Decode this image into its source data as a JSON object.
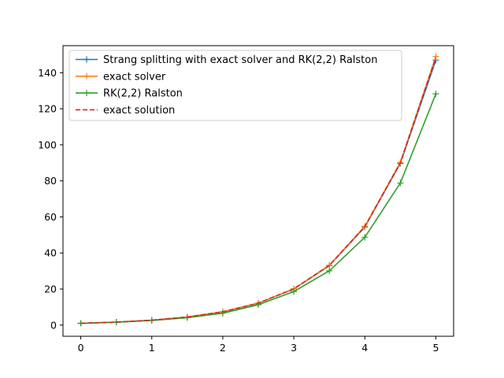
{
  "chart_data": {
    "type": "line",
    "title": "",
    "xlabel": "",
    "ylabel": "",
    "xlim": [
      -0.25,
      5.25
    ],
    "ylim": [
      -6.2,
      155.0
    ],
    "grid": false,
    "legend_position": "top-left",
    "x": [
      0,
      0.5,
      1,
      1.5,
      2,
      2.5,
      3,
      3.5,
      4,
      4.5,
      5
    ],
    "x_ticks": [
      0,
      1,
      2,
      3,
      4,
      5
    ],
    "x_tick_labels": [
      "0",
      "1",
      "2",
      "3",
      "4",
      "5"
    ],
    "y_ticks": [
      0,
      20,
      40,
      60,
      80,
      100,
      120,
      140
    ],
    "y_tick_labels": [
      "0",
      "20",
      "40",
      "60",
      "80",
      "100",
      "120",
      "140"
    ],
    "series": [
      {
        "name": "Strang splitting with exact solver and RK(2,2) Ralston",
        "color": "#1f77b4",
        "linestyle": "solid",
        "marker": "+",
        "values": [
          1.0,
          1.64,
          2.71,
          4.47,
          7.37,
          12.15,
          20.03,
          33.0,
          54.4,
          89.7,
          147.0
        ]
      },
      {
        "name": "exact solver",
        "color": "#ff7f0e",
        "linestyle": "solid",
        "marker": "+",
        "values": [
          1.0,
          1.65,
          2.72,
          4.49,
          7.4,
          12.2,
          20.1,
          33.2,
          54.8,
          90.3,
          149.0
        ]
      },
      {
        "name": "RK(2,2) Ralston",
        "color": "#2ca02c",
        "linestyle": "solid",
        "marker": "+",
        "values": [
          1.0,
          1.6,
          2.56,
          4.1,
          6.6,
          11.3,
          18.6,
          30.1,
          48.7,
          78.8,
          128.3
        ]
      },
      {
        "name": "exact solution",
        "color": "#d62728",
        "linestyle": "dashed",
        "marker": "none",
        "values": [
          1.0,
          1.65,
          2.72,
          4.48,
          7.39,
          12.18,
          20.09,
          33.12,
          54.6,
          90.02,
          148.41
        ]
      }
    ]
  }
}
